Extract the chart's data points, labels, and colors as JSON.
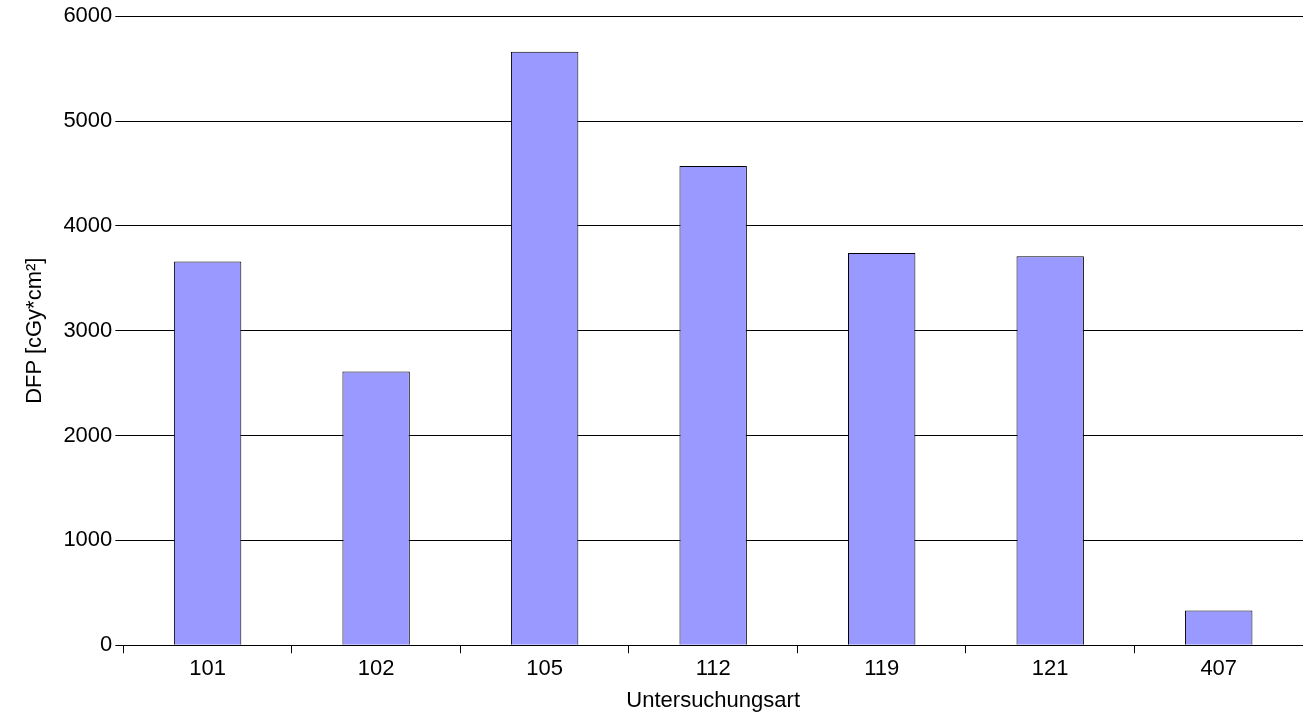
{
  "chart_data": {
    "type": "bar",
    "xlabel": "Untersuchungsart",
    "ylabel": "DFP [cGy*cm²]",
    "categories": [
      "101",
      "102",
      "105",
      "112",
      "119",
      "121",
      "407"
    ],
    "values": [
      3660,
      2610,
      5660,
      4570,
      3740,
      3710,
      330
    ],
    "color": "#9999ff",
    "ylim": [
      0,
      6000
    ],
    "yticks": [
      0,
      1000,
      2000,
      3000,
      4000,
      5000,
      6000
    ],
    "grid": "y"
  }
}
